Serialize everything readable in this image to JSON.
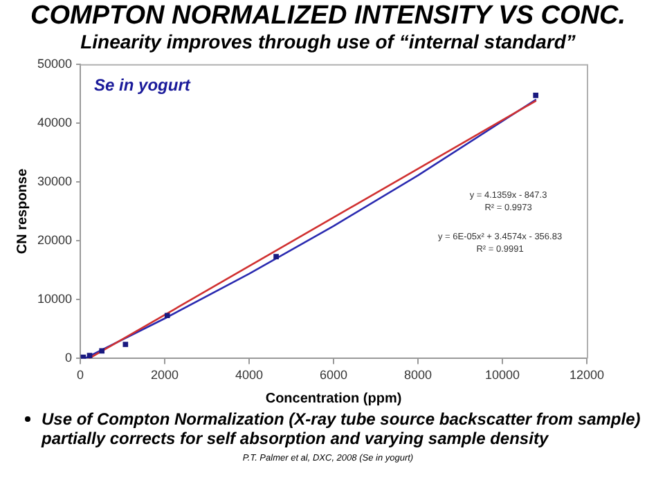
{
  "chart_data": {
    "type": "scatter",
    "title": "COMPTON NORMALIZED INTENSITY VS CONC.",
    "subtitle": "Linearity improves through use of “internal standard”",
    "xlabel": "Concentration (ppm)",
    "ylabel": "CN response",
    "xlim": [
      0,
      12000
    ],
    "xticks": [
      0,
      2000,
      4000,
      6000,
      8000,
      10000,
      12000
    ],
    "ylim": [
      0,
      50000
    ],
    "yticks": [
      0,
      10000,
      20000,
      30000,
      40000,
      50000
    ],
    "series": [
      {
        "marker": "square",
        "color": "#1a1a80",
        "x": [
          70,
          220,
          510,
          1070,
          2060,
          4640,
          10790
        ],
        "values": [
          200,
          500,
          1300,
          2400,
          7300,
          17300,
          44700
        ]
      },
      {
        "type": "line",
        "color": "#d03030",
        "x": [
          205,
          10800
        ],
        "values": [
          0,
          43800
        ]
      },
      {
        "type": "line",
        "color": "#2a2ab0",
        "x": [
          103,
          2000,
          4000,
          6000,
          8000,
          10800
        ],
        "values": [
          0,
          6800,
          14400,
          22500,
          31100,
          44000
        ]
      }
    ],
    "annotations": [
      "Se in yogurt",
      "y = 4.1359x - 847.3",
      "R² = 0.9973",
      "y = 6E-05x² + 3.4574x - 356.83",
      "R² = 0.9991",
      "Use of Compton Normalization (X-ray tube source backscatter from sample) partially corrects for self absorption and varying sample density",
      "P.T. Palmer et al, DXC, 2008 (Se in yogurt)"
    ]
  }
}
